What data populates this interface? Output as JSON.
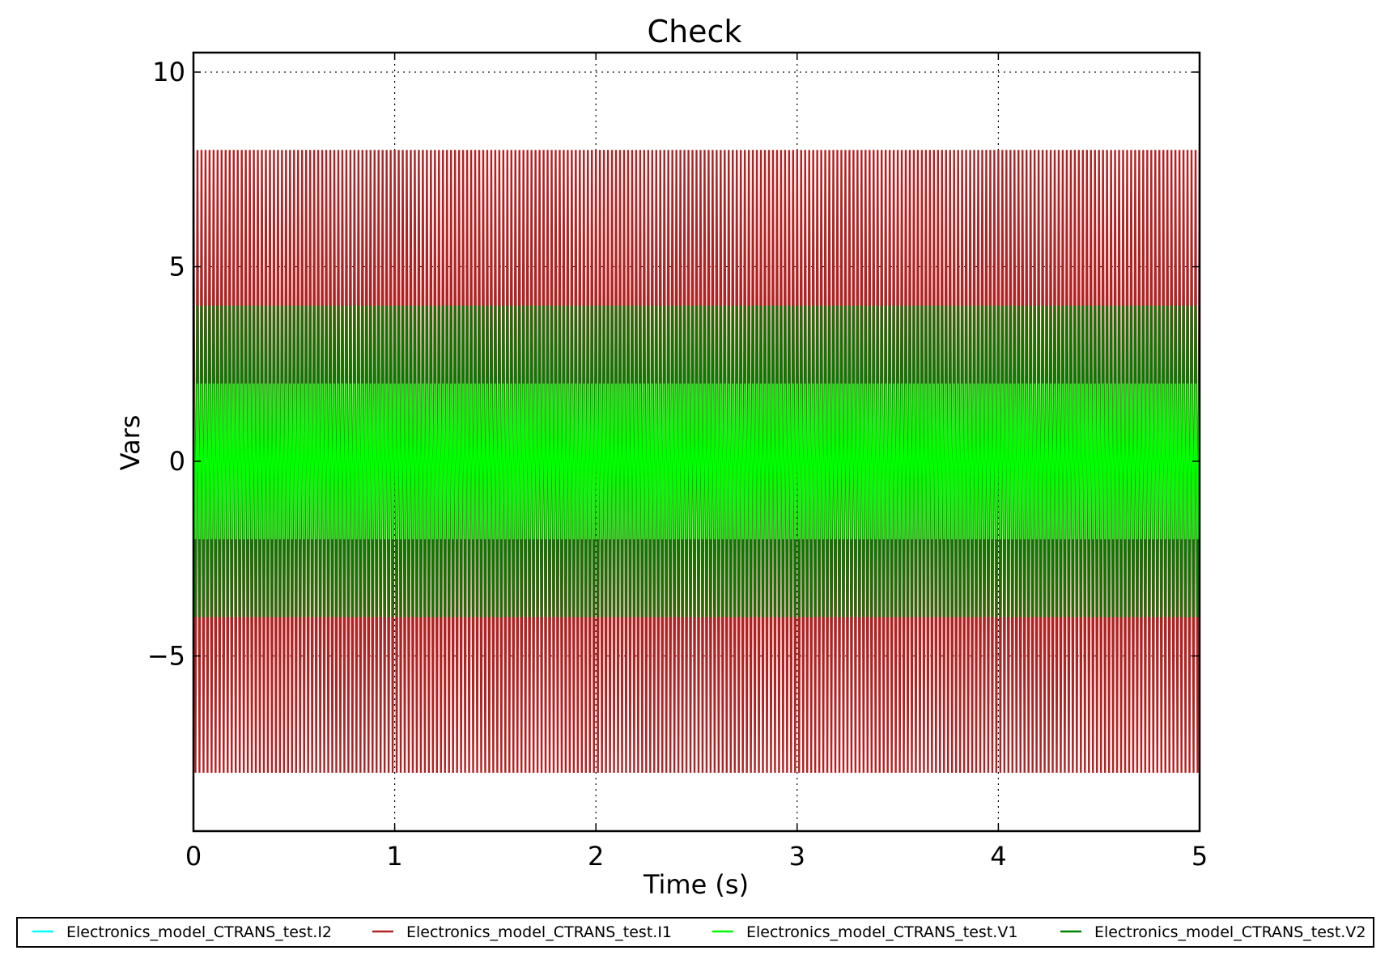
{
  "chart_data": {
    "type": "line",
    "title": "Check",
    "xlabel": "Time (s)",
    "ylabel": "Vars",
    "xlim": [
      0,
      5
    ],
    "ylim": [
      -9.5,
      10.5
    ],
    "xticks": [
      0,
      1,
      2,
      3,
      4,
      5
    ],
    "xtick_labels": [
      "0",
      "1",
      "2",
      "3",
      "4",
      "5"
    ],
    "yticks": [
      -5,
      0,
      5,
      10
    ],
    "ytick_labels": [
      "−5",
      "0",
      "5",
      "10"
    ],
    "grid": true,
    "legend_position": "bottom, outside plot, single row",
    "oscillation_periods_per_second": 50,
    "series": [
      {
        "name": "Electronics_model_CTRANS_test.I2",
        "color": "#00ffff",
        "min": -8,
        "max": 8,
        "visible_in_plot": false
      },
      {
        "name": "Electronics_model_CTRANS_test.I1",
        "color": "#b22222",
        "min": -8,
        "max": 8,
        "visible_in_plot": true
      },
      {
        "name": "Electronics_model_CTRANS_test.V1",
        "color": "#00ff00",
        "min": -2,
        "max": 2,
        "visible_in_plot": true
      },
      {
        "name": "Electronics_model_CTRANS_test.V2",
        "color": "#008000",
        "min": -4,
        "max": 4,
        "visible_in_plot": true
      }
    ]
  }
}
